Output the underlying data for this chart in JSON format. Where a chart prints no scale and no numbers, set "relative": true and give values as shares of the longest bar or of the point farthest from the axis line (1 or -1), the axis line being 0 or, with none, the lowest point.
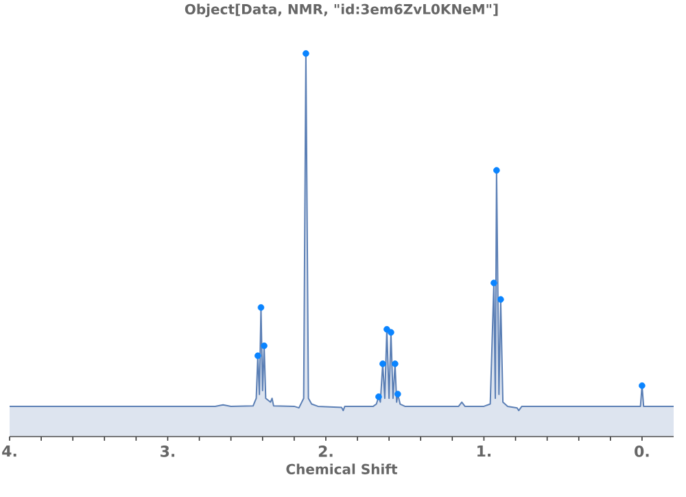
{
  "chart_data": {
    "type": "area",
    "title": "Object[Data, NMR, \"id:3em6ZvL0KNeM\"]",
    "xlabel": "Chemical Shift",
    "relative": true,
    "xlim": [
      4,
      -0.2
    ],
    "xticks": [
      {
        "value": 4,
        "label": "4."
      },
      {
        "value": 3.8,
        "label": null
      },
      {
        "value": 3.6,
        "label": null
      },
      {
        "value": 3.4,
        "label": null
      },
      {
        "value": 3.2,
        "label": null
      },
      {
        "value": 3,
        "label": "3."
      },
      {
        "value": 2.8,
        "label": null
      },
      {
        "value": 2.6,
        "label": null
      },
      {
        "value": 2.4,
        "label": null
      },
      {
        "value": 2.2,
        "label": null
      },
      {
        "value": 2,
        "label": "2."
      },
      {
        "value": 1.8,
        "label": null
      },
      {
        "value": 1.6,
        "label": null
      },
      {
        "value": 1.4,
        "label": null
      },
      {
        "value": 1.2,
        "label": null
      },
      {
        "value": 1,
        "label": "1."
      },
      {
        "value": 0.8,
        "label": null
      },
      {
        "value": 0.6,
        "label": null
      },
      {
        "value": 0.4,
        "label": null
      },
      {
        "value": 0.2,
        "label": null
      },
      {
        "value": 0,
        "label": "0."
      }
    ],
    "grid": false,
    "series": [
      {
        "color": "#5b7fb5",
        "marker": "none",
        "x": [
          4.0,
          2.7,
          2.65,
          2.6,
          2.46,
          2.44,
          2.43,
          2.42,
          2.41,
          2.4,
          2.39,
          2.38,
          2.35,
          2.34,
          2.33,
          2.2,
          2.17,
          2.14,
          2.126,
          2.11,
          2.09,
          2.05,
          1.9,
          1.89,
          1.88,
          1.7,
          1.68,
          1.666,
          1.655,
          1.64,
          1.627,
          1.614,
          1.6,
          1.588,
          1.575,
          1.562,
          1.552,
          1.545,
          1.53,
          1.5,
          1.16,
          1.14,
          1.12,
          1.0,
          0.96,
          0.937,
          0.928,
          0.92,
          0.905,
          0.894,
          0.88,
          0.85,
          0.79,
          0.78,
          0.76,
          0.01,
          0.0,
          -0.01,
          -0.2
        ],
        "values": [
          0.079,
          0.079,
          0.083,
          0.079,
          0.08,
          0.1,
          0.211,
          0.11,
          0.337,
          0.12,
          0.237,
          0.1,
          0.09,
          0.1,
          0.08,
          0.079,
          0.075,
          0.1,
          1.0,
          0.1,
          0.085,
          0.079,
          0.076,
          0.068,
          0.079,
          0.079,
          0.085,
          0.104,
          0.09,
          0.19,
          0.1,
          0.28,
          0.1,
          0.272,
          0.1,
          0.19,
          0.09,
          0.111,
          0.085,
          0.079,
          0.079,
          0.09,
          0.079,
          0.079,
          0.085,
          0.401,
          0.1,
          0.695,
          0.11,
          0.358,
          0.09,
          0.079,
          0.075,
          0.068,
          0.079,
          0.079,
          0.133,
          0.079,
          0.079
        ]
      },
      {
        "type": "scatter",
        "color": "#0a84ff",
        "marker": "circle",
        "x": [
          2.43,
          2.41,
          2.39,
          2.126,
          1.666,
          1.64,
          1.614,
          1.588,
          1.562,
          1.545,
          0.937,
          0.92,
          0.894,
          0.0
        ],
        "values": [
          0.211,
          0.337,
          0.237,
          1.0,
          0.104,
          0.19,
          0.28,
          0.272,
          0.19,
          0.111,
          0.401,
          0.695,
          0.358,
          0.133
        ]
      }
    ]
  }
}
